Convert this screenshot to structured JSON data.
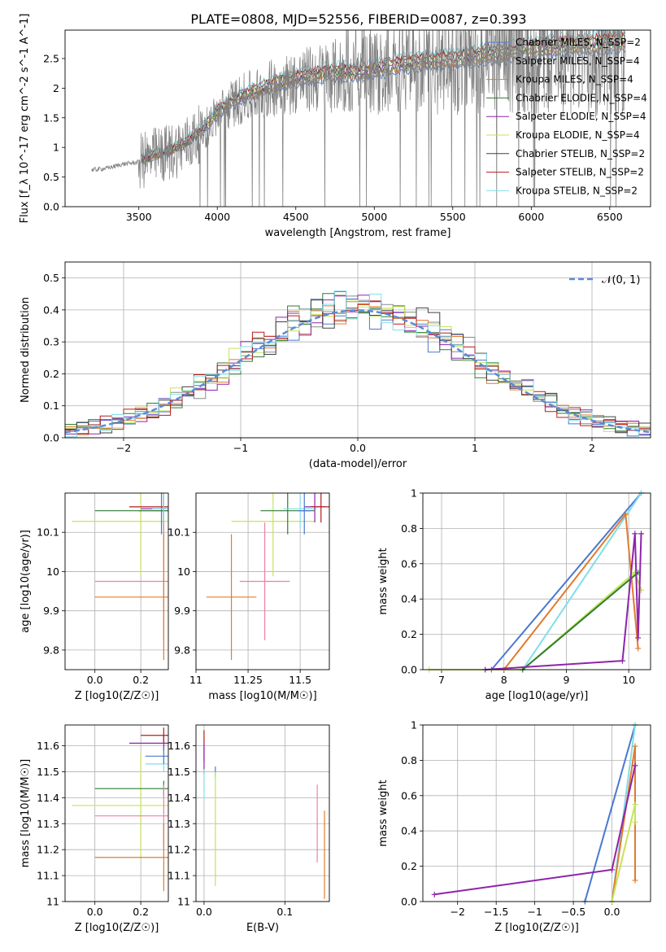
{
  "figure_title": "PLATE=0808, MJD=52556, FIBERID=0087, z=0.393",
  "colors": {
    "spectrum": "#808080",
    "normal_curve": "#5b8bd8",
    "grid": "#b0b0b0"
  },
  "chart_data": [
    {
      "id": "spectrum",
      "type": "line",
      "xlabel": "wavelength [Angstrom, rest frame]",
      "ylabel": "Flux [f_λ 10^-17 erg cm^-2 s^-1 A^-1]",
      "xlim": [
        3030,
        6760
      ],
      "ylim": [
        0,
        2.98
      ],
      "xticks": [
        3500,
        4000,
        4500,
        5000,
        5500,
        6000,
        6500
      ],
      "yticks": [
        0.0,
        0.5,
        1.0,
        1.5,
        2.0,
        2.5
      ],
      "grid": false,
      "legend_position": "top-right",
      "series": [
        {
          "name": "Chabrier MILES, N_SSP=2",
          "color": "#4a78d0"
        },
        {
          "name": "Salpeter MILES, N_SSP=4",
          "color": "#8a8a8a"
        },
        {
          "name": "Kroupa MILES, N_SSP=4",
          "color": "#e07b2e"
        },
        {
          "name": "Chabrier ELODIE, N_SSP=4",
          "color": "#2e7d32"
        },
        {
          "name": "Salpeter ELODIE, N_SSP=4",
          "color": "#8e24aa"
        },
        {
          "name": "Kroupa ELODIE, N_SSP=4",
          "color": "#c6e35a"
        },
        {
          "name": "Chabrier STELIB, N_SSP=2",
          "color": "#424242"
        },
        {
          "name": "Salpeter STELIB, N_SSP=2",
          "color": "#b71c1c"
        },
        {
          "name": "Kroupa STELIB, N_SSP=2",
          "color": "#80deea"
        }
      ],
      "data_wavelength": [
        3200,
        3300,
        3400,
        3500,
        3600,
        3700,
        3800,
        3900,
        4000,
        4100,
        4200,
        4300,
        4400,
        4500,
        4600,
        4700,
        4800,
        4900,
        5000,
        5100,
        5200,
        5300,
        5400,
        5500,
        5600,
        5700,
        5800,
        5900,
        6000,
        6100,
        6200,
        6300,
        6400,
        6500,
        6600
      ],
      "data_flux": [
        0.62,
        0.65,
        0.72,
        0.75,
        0.85,
        0.92,
        1.05,
        1.25,
        1.55,
        1.75,
        1.85,
        1.95,
        2.05,
        2.1,
        2.15,
        2.2,
        2.22,
        2.2,
        2.25,
        2.3,
        2.35,
        2.38,
        2.4,
        2.42,
        2.45,
        2.5,
        2.5,
        2.55,
        2.6,
        2.62,
        2.65,
        2.65,
        2.68,
        2.7,
        2.72
      ]
    },
    {
      "id": "residuals",
      "type": "line",
      "xlabel": "(data-model)/error",
      "ylabel": "Normed distribution",
      "xlim": [
        -2.5,
        2.5
      ],
      "ylim": [
        0,
        0.55
      ],
      "xticks": [
        -2,
        -1,
        0,
        1,
        2
      ],
      "yticks": [
        0.0,
        0.1,
        0.2,
        0.3,
        0.4,
        0.5
      ],
      "grid": true,
      "legend_position": "top-right",
      "legend_label": "𝒩(0, 1)",
      "normal_sigma": 1.0,
      "hist_colors": [
        "#4a78d0",
        "#8a8a8a",
        "#e07b2e",
        "#2e7d32",
        "#8e24aa",
        "#c6e35a",
        "#424242",
        "#b71c1c",
        "#80deea"
      ]
    },
    {
      "id": "age-vs-Z",
      "type": "scatter",
      "xlabel": "Z [log10(Z/Z☉)]",
      "ylabel": "age [log10(age/yr)]",
      "xlim": [
        -0.13,
        0.32
      ],
      "ylim": [
        9.75,
        10.2
      ],
      "xticks": [
        0.0,
        0.2
      ],
      "yticks": [
        9.8,
        9.9,
        10.0,
        10.1
      ],
      "grid": true,
      "points": [
        {
          "x": 0.2,
          "y": 10.128,
          "xerr": 0.3,
          "yerr": 0.14,
          "color": "#c6e35a"
        },
        {
          "x": 0.29,
          "y": 10.155,
          "xerr": 0.1,
          "yerr": 0.06,
          "color": "#4a78d0"
        },
        {
          "x": 0.3,
          "y": 10.16,
          "xerr": 0.1,
          "yerr": 0.05,
          "color": "#8e24aa"
        },
        {
          "x": 0.3,
          "y": 10.165,
          "xerr": 0.15,
          "yerr": 0.04,
          "color": "#b71c1c"
        },
        {
          "x": 0.3,
          "y": 10.155,
          "xerr": 0.3,
          "yerr": 0.06,
          "color": "#2e7d32"
        },
        {
          "x": 0.3,
          "y": 10.16,
          "xerr": 0.05,
          "yerr": 0.06,
          "color": "#80deea"
        },
        {
          "x": 0.3,
          "y": 9.975,
          "xerr": 0.3,
          "yerr": 0.15,
          "color": "#f080a0"
        },
        {
          "x": 0.3,
          "y": 9.935,
          "xerr": 0.3,
          "yerr": 0.16,
          "color": "#e07b2e"
        }
      ]
    },
    {
      "id": "age-vs-mass",
      "type": "scatter",
      "xlabel": "mass [log10(M/M☉)]",
      "ylabel": "",
      "xlim": [
        11.0,
        11.64
      ],
      "ylim": [
        9.75,
        10.2
      ],
      "xticks": [
        11.0,
        11.25,
        11.5
      ],
      "yticks": [
        9.8,
        9.9,
        10.0,
        10.1
      ],
      "grid": true,
      "points": [
        {
          "x": 11.37,
          "y": 10.128,
          "xerr": 0.2,
          "yerr": 0.14,
          "color": "#c6e35a"
        },
        {
          "x": 11.44,
          "y": 10.155,
          "xerr": 0.13,
          "yerr": 0.06,
          "color": "#2e7d32"
        },
        {
          "x": 11.5,
          "y": 10.16,
          "xerr": 0.08,
          "yerr": 0.05,
          "color": "#80deea"
        },
        {
          "x": 11.57,
          "y": 10.165,
          "xerr": 0.05,
          "yerr": 0.04,
          "color": "#8e24aa"
        },
        {
          "x": 11.6,
          "y": 10.165,
          "xerr": 0.05,
          "yerr": 0.04,
          "color": "#b71c1c"
        },
        {
          "x": 11.52,
          "y": 10.155,
          "xerr": 0.03,
          "yerr": 0.06,
          "color": "#4a78d0"
        },
        {
          "x": 11.33,
          "y": 9.975,
          "xerr": 0.12,
          "yerr": 0.15,
          "color": "#f080a0"
        },
        {
          "x": 11.17,
          "y": 9.935,
          "xerr": 0.12,
          "yerr": 0.16,
          "color": "#e07b2e"
        }
      ]
    },
    {
      "id": "mass-weight-vs-age",
      "type": "line",
      "xlabel": "age [log10(age/yr)]",
      "ylabel": "mass weight",
      "xlim": [
        6.7,
        10.35
      ],
      "ylim": [
        0,
        1
      ],
      "xticks": [
        7,
        8,
        9,
        10
      ],
      "yticks": [
        0.0,
        0.2,
        0.4,
        0.6,
        0.8,
        1.0
      ],
      "grid": true,
      "series": [
        {
          "color": "#4a78d0",
          "x": [
            7.8,
            10.2
          ],
          "y": [
            0.0,
            1.0
          ]
        },
        {
          "color": "#80deea",
          "x": [
            8.3,
            10.2
          ],
          "y": [
            0.0,
            1.0
          ]
        },
        {
          "color": "#e07b2e",
          "x": [
            8.0,
            9.95,
            10.15
          ],
          "y": [
            0.0,
            0.88,
            0.12
          ]
        },
        {
          "color": "#c6e35a",
          "x": [
            6.8,
            8.3,
            10.1,
            10.2
          ],
          "y": [
            0.0,
            0.0,
            0.55,
            0.45
          ]
        },
        {
          "color": "#2e7d32",
          "x": [
            8.3,
            10.15
          ],
          "y": [
            0.0,
            0.55
          ]
        },
        {
          "color": "#8e24aa",
          "x": [
            7.7,
            9.9,
            10.1,
            10.15,
            10.2
          ],
          "y": [
            0.0,
            0.05,
            0.77,
            0.18,
            0.77
          ]
        }
      ]
    },
    {
      "id": "mass-vs-Z",
      "type": "scatter",
      "xlabel": "Z [log10(Z/Z☉)]",
      "ylabel": "mass [log10(M/M☉)]",
      "xlim": [
        -0.13,
        0.32
      ],
      "ylim": [
        11.0,
        11.68
      ],
      "xticks": [
        0.0,
        0.2
      ],
      "yticks": [
        11.0,
        11.1,
        11.2,
        11.3,
        11.4,
        11.5,
        11.6
      ],
      "grid": true,
      "points": [
        {
          "x": 0.2,
          "y": 11.37,
          "xerr": 0.3,
          "yerr": 0.2,
          "color": "#c6e35a"
        },
        {
          "x": 0.3,
          "y": 11.435,
          "xerr": 0.3,
          "yerr": 0.03,
          "color": "#2e7d32"
        },
        {
          "x": 0.3,
          "y": 11.33,
          "xerr": 0.3,
          "yerr": 0.12,
          "color": "#f080a0"
        },
        {
          "x": 0.3,
          "y": 11.17,
          "xerr": 0.3,
          "yerr": 0.13,
          "color": "#e07b2e"
        },
        {
          "x": 0.3,
          "y": 11.61,
          "xerr": 0.15,
          "yerr": 0.03,
          "color": "#8e24aa"
        },
        {
          "x": 0.3,
          "y": 11.64,
          "xerr": 0.1,
          "yerr": 0.03,
          "color": "#b71c1c"
        },
        {
          "x": 0.3,
          "y": 11.53,
          "xerr": 0.08,
          "yerr": 0.03,
          "color": "#80deea"
        },
        {
          "x": 0.3,
          "y": 11.56,
          "xerr": 0.08,
          "yerr": 0.03,
          "color": "#4a78d0"
        }
      ]
    },
    {
      "id": "mass-vs-ebv",
      "type": "scatter",
      "xlabel": "E(B-V)",
      "ylabel": "",
      "xlim": [
        -0.01,
        0.155
      ],
      "ylim": [
        11.0,
        11.68
      ],
      "xticks": [
        0.0,
        0.1
      ],
      "yticks": [
        11.0,
        11.1,
        11.2,
        11.3,
        11.4,
        11.5,
        11.6
      ],
      "grid": true,
      "points": [
        {
          "x": 0.0,
          "y": 11.6,
          "xerr": 0.0,
          "yerr": 0.06,
          "color": "#b71c1c"
        },
        {
          "x": 0.0,
          "y": 11.55,
          "xerr": 0.0,
          "yerr": 0.06,
          "color": "#8e24aa"
        },
        {
          "x": 0.0,
          "y": 11.45,
          "xerr": 0.0,
          "yerr": 0.06,
          "color": "#80deea"
        },
        {
          "x": 0.014,
          "y": 11.5,
          "xerr": 0.0,
          "yerr": 0.02,
          "color": "#4a78d0"
        },
        {
          "x": 0.014,
          "y": 11.28,
          "xerr": 0.0,
          "yerr": 0.22,
          "color": "#c6e35a"
        },
        {
          "x": 0.14,
          "y": 11.3,
          "xerr": 0.0,
          "yerr": 0.15,
          "color": "#f080a0"
        },
        {
          "x": 0.149,
          "y": 11.18,
          "xerr": 0.0,
          "yerr": 0.17,
          "color": "#e07b2e"
        }
      ]
    },
    {
      "id": "mass-weight-vs-Z",
      "type": "line",
      "xlabel": "Z [log10(Z/Z☉)]",
      "ylabel": "mass weight",
      "xlim": [
        -2.45,
        0.5
      ],
      "ylim": [
        0,
        1
      ],
      "xticks": [
        -2.0,
        -1.5,
        -1.0,
        -0.5,
        0.0
      ],
      "yticks": [
        0.0,
        0.2,
        0.4,
        0.6,
        0.8,
        1.0
      ],
      "grid": true,
      "series": [
        {
          "color": "#4a78d0",
          "x": [
            -0.35,
            0.3
          ],
          "y": [
            0.0,
            1.0
          ]
        },
        {
          "color": "#80deea",
          "x": [
            0.0,
            0.3
          ],
          "y": [
            0.0,
            1.0
          ]
        },
        {
          "color": "#e07b2e",
          "x": [
            0.0,
            0.3,
            0.3
          ],
          "y": [
            0.0,
            0.88,
            0.12
          ]
        },
        {
          "color": "#c6e35a",
          "x": [
            0.0,
            0.3,
            0.3
          ],
          "y": [
            0.0,
            0.55,
            0.45
          ]
        },
        {
          "color": "#8e24aa",
          "x": [
            -2.3,
            0.0,
            0.3
          ],
          "y": [
            0.04,
            0.18,
            0.77
          ]
        }
      ]
    }
  ]
}
